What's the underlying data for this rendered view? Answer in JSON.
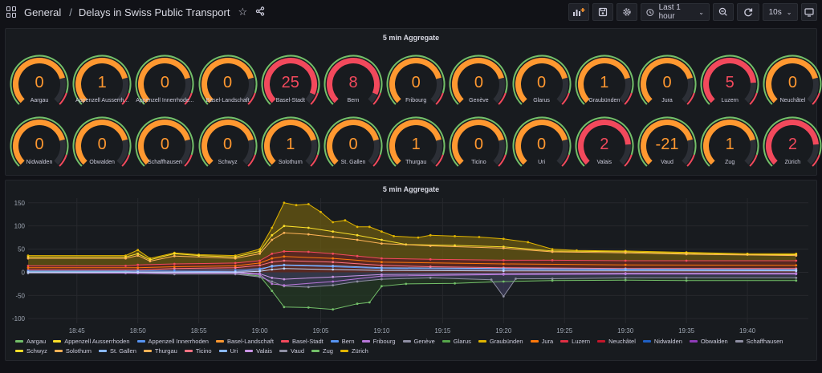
{
  "topbar": {
    "folder": "General",
    "separator": "/",
    "dashboard_title": "Delays in Swiss Public Transport",
    "time_range": "Last 1 hour",
    "refresh_interval": "10s",
    "icons": [
      "apps-icon",
      "star-icon",
      "share-icon",
      "add-panel-icon",
      "save-icon",
      "settings-icon",
      "clock-icon",
      "zoom-out-icon",
      "refresh-icon",
      "tv-icon"
    ]
  },
  "gauge_panel": {
    "title": "5 min Aggregate",
    "colors": {
      "orange": "#ff9830",
      "red": "#f2495c",
      "green": "#73bf69",
      "track": "#2c2f36"
    },
    "gauges": [
      {
        "name": "Aargau",
        "value": "0"
      },
      {
        "name": "Appenzell Ausserrh...",
        "value": "1"
      },
      {
        "name": "Appenzell Innerrhode...",
        "value": "0"
      },
      {
        "name": "Basel-Landschaft",
        "value": "0"
      },
      {
        "name": "Basel-Stadt",
        "value": "25"
      },
      {
        "name": "Bern",
        "value": "8"
      },
      {
        "name": "Fribourg",
        "value": "0"
      },
      {
        "name": "Genève",
        "value": "0"
      },
      {
        "name": "Glarus",
        "value": "0"
      },
      {
        "name": "Graubünden",
        "value": "1"
      },
      {
        "name": "Jura",
        "value": "0"
      },
      {
        "name": "Luzern",
        "value": "5"
      },
      {
        "name": "Neuchâtel",
        "value": "0"
      },
      {
        "name": "Nidwalden",
        "value": "0"
      },
      {
        "name": "Obwalden",
        "value": "0"
      },
      {
        "name": "Schaffhausen",
        "value": "0"
      },
      {
        "name": "Schwyz",
        "value": "0"
      },
      {
        "name": "Solothurn",
        "value": "1"
      },
      {
        "name": "St. Gallen",
        "value": "0"
      },
      {
        "name": "Thurgau",
        "value": "1"
      },
      {
        "name": "Ticino",
        "value": "0"
      },
      {
        "name": "Uri",
        "value": "0"
      },
      {
        "name": "Valais",
        "value": "2"
      },
      {
        "name": "Vaud",
        "value": "-21"
      },
      {
        "name": "Zug",
        "value": "1"
      },
      {
        "name": "Zürich",
        "value": "2"
      }
    ]
  },
  "chart_panel": {
    "title": "5 min Aggregate",
    "chart_data": {
      "type": "area",
      "ylim": [
        -110,
        160
      ],
      "y_ticks": [
        "150",
        "100",
        "50",
        "0",
        "-50",
        "-100"
      ],
      "x_ticks": [
        "18:45",
        "18:50",
        "18:55",
        "19:00",
        "19:05",
        "19:10",
        "19:15",
        "19:20",
        "19:25",
        "19:30",
        "19:35",
        "19:40"
      ],
      "x_tick_minutes": [
        45,
        50,
        55,
        60,
        65,
        70,
        75,
        80,
        85,
        90,
        95,
        100
      ],
      "xlim_minutes": [
        41,
        105
      ],
      "series": [
        {
          "name": "Zürich",
          "color": "#e0b400",
          "fill": "#6a5a12",
          "points": [
            [
              41,
              36
            ],
            [
              49,
              36
            ],
            [
              50,
              48
            ],
            [
              51,
              30
            ],
            [
              53,
              42
            ],
            [
              55,
              38
            ],
            [
              58,
              36
            ],
            [
              60,
              50
            ],
            [
              61,
              96
            ],
            [
              62,
              150
            ],
            [
              63,
              145
            ],
            [
              64,
              147
            ],
            [
              65,
              130
            ],
            [
              66,
              108
            ],
            [
              67,
              112
            ],
            [
              68,
              98
            ],
            [
              69,
              98
            ],
            [
              70,
              88
            ],
            [
              71,
              78
            ],
            [
              73,
              75
            ],
            [
              74,
              80
            ],
            [
              76,
              78
            ],
            [
              78,
              76
            ],
            [
              80,
              72
            ],
            [
              82,
              65
            ],
            [
              84,
              50
            ],
            [
              86,
              47
            ],
            [
              90,
              46
            ],
            [
              95,
              43
            ],
            [
              100,
              40
            ],
            [
              104,
              40
            ]
          ]
        },
        {
          "name": "Appenzell Ausserrhoden",
          "color": "#fade2a",
          "fill": "",
          "points": [
            [
              41,
              33
            ],
            [
              49,
              33
            ],
            [
              50,
              40
            ],
            [
              51,
              27
            ],
            [
              53,
              40
            ],
            [
              55,
              36
            ],
            [
              58,
              33
            ],
            [
              60,
              45
            ],
            [
              61,
              80
            ],
            [
              62,
              100
            ],
            [
              64,
              96
            ],
            [
              66,
              88
            ],
            [
              68,
              80
            ],
            [
              70,
              70
            ],
            [
              72,
              60
            ],
            [
              76,
              58
            ],
            [
              80,
              55
            ],
            [
              84,
              46
            ],
            [
              90,
              44
            ],
            [
              95,
              41
            ],
            [
              100,
              38
            ],
            [
              104,
              38
            ]
          ]
        },
        {
          "name": "Thurgau",
          "color": "#ffb357",
          "fill": "",
          "points": [
            [
              41,
              30
            ],
            [
              49,
              30
            ],
            [
              50,
              36
            ],
            [
              51,
              24
            ],
            [
              53,
              35
            ],
            [
              58,
              30
            ],
            [
              60,
              40
            ],
            [
              61,
              70
            ],
            [
              62,
              85
            ],
            [
              64,
              82
            ],
            [
              66,
              76
            ],
            [
              68,
              70
            ],
            [
              70,
              62
            ],
            [
              74,
              57
            ],
            [
              80,
              52
            ],
            [
              84,
              44
            ],
            [
              90,
              42
            ],
            [
              95,
              39
            ],
            [
              104,
              36
            ]
          ]
        },
        {
          "name": "Basel-Stadt",
          "color": "#f2495c",
          "fill": "#5a1e26",
          "points": [
            [
              41,
              14
            ],
            [
              49,
              14
            ],
            [
              50,
              16
            ],
            [
              53,
              18
            ],
            [
              58,
              20
            ],
            [
              60,
              25
            ],
            [
              61,
              40
            ],
            [
              62,
              45
            ],
            [
              64,
              44
            ],
            [
              66,
              40
            ],
            [
              68,
              35
            ],
            [
              70,
              30
            ],
            [
              74,
              28
            ],
            [
              80,
              26
            ],
            [
              84,
              26
            ],
            [
              90,
              25
            ],
            [
              95,
              25
            ],
            [
              104,
              25
            ]
          ]
        },
        {
          "name": "Glarus",
          "color": "#73bf69",
          "fill": "#243a24",
          "points": [
            [
              41,
              2
            ],
            [
              49,
              2
            ],
            [
              50,
              0
            ],
            [
              53,
              -2
            ],
            [
              58,
              -2
            ],
            [
              60,
              -8
            ],
            [
              61,
              -40
            ],
            [
              62,
              -75
            ],
            [
              64,
              -76
            ],
            [
              66,
              -80
            ],
            [
              68,
              -68
            ],
            [
              69,
              -65
            ],
            [
              70,
              -30
            ],
            [
              72,
              -25
            ],
            [
              76,
              -24
            ],
            [
              80,
              -20
            ],
            [
              84,
              -18
            ],
            [
              90,
              -17
            ],
            [
              95,
              -18
            ],
            [
              104,
              -18
            ]
          ]
        },
        {
          "name": "Vaud",
          "color": "#8f8fa3",
          "fill": "#3a3a55",
          "points": [
            [
              41,
              -2
            ],
            [
              49,
              -2
            ],
            [
              53,
              -4
            ],
            [
              58,
              -4
            ],
            [
              60,
              -10
            ],
            [
              61,
              -20
            ],
            [
              62,
              -30
            ],
            [
              64,
              -32
            ],
            [
              66,
              -28
            ],
            [
              68,
              -20
            ],
            [
              70,
              -15
            ],
            [
              74,
              -12
            ],
            [
              79,
              -16
            ],
            [
              80,
              -52
            ],
            [
              81,
              -14
            ],
            [
              84,
              -14
            ],
            [
              90,
              -12
            ],
            [
              95,
              -12
            ],
            [
              104,
              -12
            ]
          ]
        },
        {
          "name": "Valais",
          "color": "#ff7383",
          "fill": "",
          "points": [
            [
              41,
              5
            ],
            [
              50,
              5
            ],
            [
              53,
              8
            ],
            [
              58,
              10
            ],
            [
              60,
              15
            ],
            [
              61,
              22
            ],
            [
              62,
              25
            ],
            [
              66,
              22
            ],
            [
              70,
              15
            ],
            [
              74,
              12
            ],
            [
              80,
              10
            ],
            [
              90,
              8
            ],
            [
              104,
              8
            ]
          ]
        },
        {
          "name": "Bern",
          "color": "#5794f2",
          "fill": "",
          "points": [
            [
              41,
              3
            ],
            [
              50,
              3
            ],
            [
              53,
              4
            ],
            [
              58,
              5
            ],
            [
              60,
              8
            ],
            [
              61,
              12
            ],
            [
              62,
              15
            ],
            [
              66,
              12
            ],
            [
              70,
              8
            ],
            [
              80,
              6
            ],
            [
              90,
              5
            ],
            [
              104,
              4
            ]
          ]
        },
        {
          "name": "Fribourg",
          "color": "#ca95e5",
          "fill": "",
          "points": [
            [
              41,
              0
            ],
            [
              50,
              0
            ],
            [
              58,
              0
            ],
            [
              60,
              -3
            ],
            [
              61,
              -12
            ],
            [
              62,
              -15
            ],
            [
              66,
              -10
            ],
            [
              70,
              -5
            ],
            [
              80,
              -3
            ],
            [
              90,
              -2
            ],
            [
              104,
              -2
            ]
          ]
        },
        {
          "name": "Genève",
          "color": "#b877d9",
          "fill": "",
          "points": [
            [
              41,
              0
            ],
            [
              50,
              -2
            ],
            [
              58,
              -2
            ],
            [
              60,
              -5
            ],
            [
              61,
              -25
            ],
            [
              62,
              -28
            ],
            [
              66,
              -20
            ],
            [
              70,
              -8
            ],
            [
              80,
              -5
            ],
            [
              90,
              -4
            ],
            [
              104,
              -4
            ]
          ]
        },
        {
          "name": "Luzern",
          "color": "#ff780a",
          "fill": "",
          "points": [
            [
              41,
              10
            ],
            [
              50,
              10
            ],
            [
              53,
              12
            ],
            [
              58,
              14
            ],
            [
              60,
              20
            ],
            [
              61,
              30
            ],
            [
              62,
              34
            ],
            [
              66,
              30
            ],
            [
              70,
              22
            ],
            [
              80,
              18
            ],
            [
              90,
              16
            ],
            [
              104,
              15
            ]
          ]
        },
        {
          "name": "St. Gallen",
          "color": "#8ab8ff",
          "fill": "",
          "points": [
            [
              41,
              1
            ],
            [
              50,
              1
            ],
            [
              58,
              2
            ],
            [
              60,
              5
            ],
            [
              61,
              14
            ],
            [
              62,
              16
            ],
            [
              66,
              14
            ],
            [
              70,
              10
            ],
            [
              80,
              8
            ],
            [
              90,
              7
            ],
            [
              104,
              6
            ]
          ]
        },
        {
          "name": "Uri",
          "color": "#c0d8ff",
          "fill": "",
          "points": [
            [
              41,
              0
            ],
            [
              50,
              0
            ],
            [
              58,
              0
            ],
            [
              60,
              2
            ],
            [
              61,
              6
            ],
            [
              62,
              8
            ],
            [
              66,
              6
            ],
            [
              70,
              4
            ],
            [
              80,
              3
            ],
            [
              104,
              3
            ]
          ]
        }
      ]
    },
    "legend": [
      "Aargau",
      "Appenzell Ausserrhoden",
      "Appenzell Innerrhoden",
      "Basel-Landschaft",
      "Basel-Stadt",
      "Bern",
      "Fribourg",
      "Genève",
      "Glarus",
      "Graubünden",
      "Jura",
      "Luzern",
      "Neuchâtel",
      "Nidwalden",
      "Obwalden",
      "Schaffhausen",
      "Schwyz",
      "Solothurn",
      "St. Gallen",
      "Thurgau",
      "Ticino",
      "Uri",
      "Valais",
      "Vaud",
      "Zug",
      "Zürich"
    ],
    "legend_colors": [
      "#73bf69",
      "#fade2a",
      "#5794f2",
      "#ff9830",
      "#f2495c",
      "#5794f2",
      "#b877d9",
      "#8f8fa3",
      "#56a64b",
      "#e0b400",
      "#ff780a",
      "#e02f44",
      "#c4162a",
      "#1f60c4",
      "#8f3bb8",
      "#8f8fa3",
      "#fade2a",
      "#ffb357",
      "#8ab8ff",
      "#ffb357",
      "#ff7383",
      "#8ab8ff",
      "#ca95e5",
      "#8f8fa3",
      "#73bf69",
      "#e0b400"
    ]
  }
}
